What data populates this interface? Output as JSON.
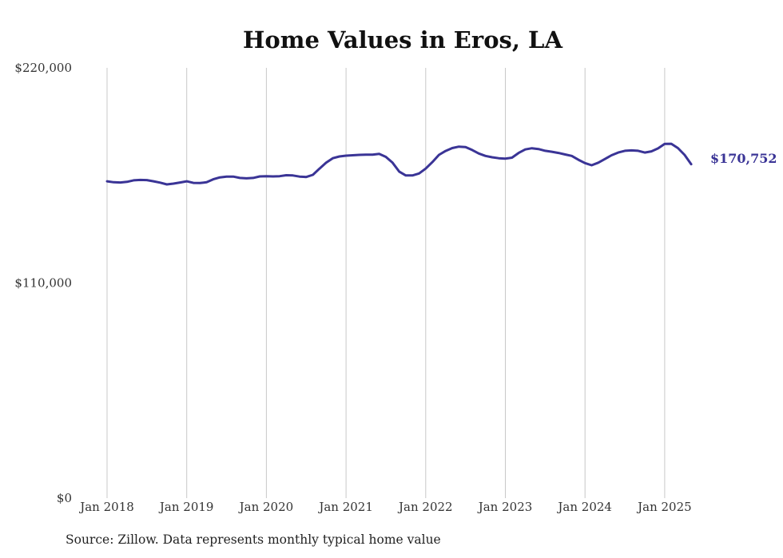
{
  "chart_data": {
    "type": "line",
    "title": "Home Values in Eros, LA",
    "xlabel": "",
    "ylabel": "",
    "ylim": [
      0,
      220000
    ],
    "y_ticks": [
      0,
      110000,
      220000
    ],
    "y_tick_labels": [
      "$0",
      "$110,000",
      "$220,000"
    ],
    "x_tick_labels": [
      "Jan 2018",
      "Jan 2019",
      "Jan 2020",
      "Jan 2021",
      "Jan 2022",
      "Jan 2023",
      "Jan 2024",
      "Jan 2025"
    ],
    "x_range": [
      "2018-01",
      "2025-05"
    ],
    "grid": {
      "vertical": true,
      "horizontal": false
    },
    "color": "#3a3496",
    "end_label": "$170,752",
    "series": [
      {
        "x": [
          "2018-01",
          "2018-02",
          "2018-03",
          "2018-04",
          "2018-05",
          "2018-06",
          "2018-07",
          "2018-08",
          "2018-09",
          "2018-10",
          "2018-11",
          "2018-12",
          "2019-01",
          "2019-02",
          "2019-03",
          "2019-04",
          "2019-05",
          "2019-06",
          "2019-07",
          "2019-08",
          "2019-09",
          "2019-10",
          "2019-11",
          "2019-12",
          "2020-01",
          "2020-02",
          "2020-03",
          "2020-04",
          "2020-05",
          "2020-06",
          "2020-07",
          "2020-08",
          "2020-09",
          "2020-10",
          "2020-11",
          "2020-12",
          "2021-01",
          "2021-02",
          "2021-03",
          "2021-04",
          "2021-05",
          "2021-06",
          "2021-07",
          "2021-08",
          "2021-09",
          "2021-10",
          "2021-11",
          "2021-12",
          "2022-01",
          "2022-02",
          "2022-03",
          "2022-04",
          "2022-05",
          "2022-06",
          "2022-07",
          "2022-08",
          "2022-09",
          "2022-10",
          "2022-11",
          "2022-12",
          "2023-01",
          "2023-02",
          "2023-03",
          "2023-04",
          "2023-05",
          "2023-06",
          "2023-07",
          "2023-08",
          "2023-09",
          "2023-10",
          "2023-11",
          "2023-12",
          "2024-01",
          "2024-02",
          "2024-03",
          "2024-04",
          "2024-05",
          "2024-06",
          "2024-07",
          "2024-08",
          "2024-09",
          "2024-10",
          "2024-11",
          "2024-12",
          "2025-01",
          "2025-02",
          "2025-03",
          "2025-04",
          "2025-05"
        ],
        "values": [
          162000,
          161500,
          161400,
          161700,
          162500,
          162700,
          162600,
          162000,
          161300,
          160400,
          160800,
          161400,
          162000,
          161200,
          161100,
          161500,
          163000,
          164000,
          164400,
          164400,
          163700,
          163500,
          163700,
          164500,
          164600,
          164500,
          164600,
          165100,
          165000,
          164400,
          164200,
          165300,
          168500,
          171500,
          173800,
          174700,
          175100,
          175300,
          175500,
          175600,
          175600,
          176000,
          174500,
          171500,
          167000,
          165000,
          165000,
          166000,
          168500,
          171800,
          175500,
          177500,
          179000,
          179700,
          179500,
          178000,
          176200,
          175000,
          174300,
          173800,
          173600,
          174100,
          176500,
          178300,
          178900,
          178500,
          177600,
          177100,
          176500,
          175700,
          175000,
          173000,
          171300,
          170200,
          171500,
          173400,
          175300,
          176700,
          177600,
          177800,
          177600,
          176700,
          177300,
          178800,
          181100,
          181200,
          179000,
          175500,
          170752
        ]
      }
    ]
  },
  "footer": {
    "source": "Source: Zillow. Data represents monthly typical home value"
  }
}
